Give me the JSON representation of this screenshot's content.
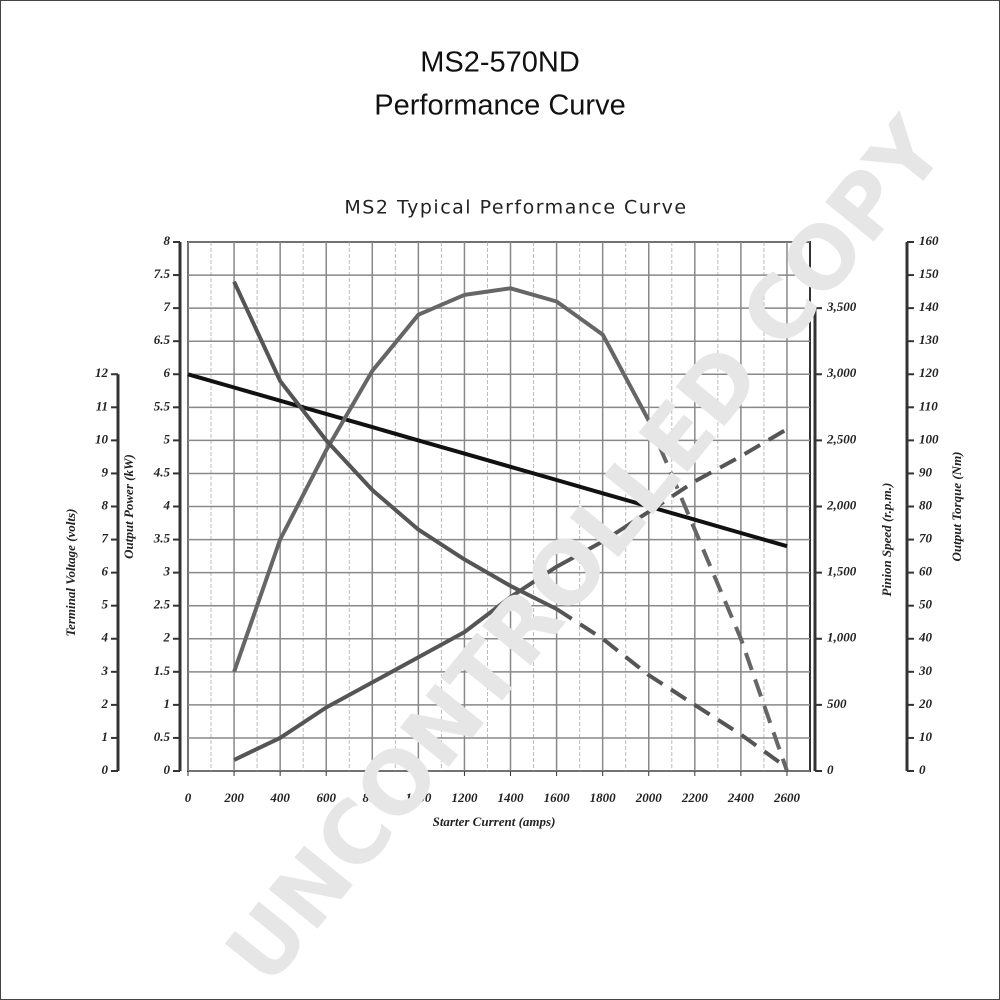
{
  "chart_data": {
    "type": "line",
    "title": "MS2-570ND",
    "subtitle": "Performance Curve",
    "chart_title": "MS2 Typical Performance Curve",
    "watermark": "UNCONTROLLED COPY",
    "x_label": "Starter Current  (amps)",
    "xlim": [
      0,
      2700
    ],
    "xticks": [
      0,
      200,
      400,
      600,
      800,
      1000,
      1200,
      1400,
      1600,
      1800,
      2000,
      2200,
      2400,
      2600
    ],
    "grid": true,
    "axes": [
      {
        "label": "Terminal Voltage (volts)",
        "lim": [
          0,
          16
        ],
        "ticks": [
          0,
          1,
          2,
          3,
          4,
          5,
          6,
          7,
          8,
          9,
          10,
          11,
          12
        ]
      },
      {
        "label": "Output Power (kW)",
        "lim": [
          0,
          8
        ],
        "ticks": [
          0,
          0.5,
          1,
          1.5,
          2,
          2.5,
          3,
          3.5,
          4,
          4.5,
          5,
          5.5,
          6,
          6.5,
          7,
          7.5,
          8
        ]
      },
      {
        "label": "Pinion Speed (r.p.m.)",
        "lim": [
          0,
          4000
        ],
        "ticks": [
          0,
          500,
          {
            "value": 1000,
            "label": "1,000"
          },
          {
            "value": 1500,
            "label": "1,500"
          },
          {
            "value": 2000,
            "label": "2,000"
          },
          {
            "value": 2500,
            "label": "2,500"
          },
          {
            "value": 3000,
            "label": "3,000"
          },
          {
            "value": 3500,
            "label": "3,500"
          }
        ]
      },
      {
        "label": "Output Torque (Nm)",
        "lim": [
          0,
          160
        ],
        "ticks": [
          0,
          10,
          20,
          30,
          40,
          50,
          60,
          70,
          80,
          90,
          100,
          110,
          120,
          130,
          140,
          150,
          160
        ]
      }
    ],
    "x": [
      0,
      200,
      400,
      600,
      800,
      1000,
      1200,
      1400,
      1600,
      1800,
      2000,
      2200,
      2400,
      2600
    ],
    "series": [
      {
        "axis": 0,
        "color": "#111111",
        "solid_until": null,
        "values": [
          12,
          11.6,
          11.2,
          10.8,
          10.4,
          10.0,
          9.6,
          9.2,
          8.8,
          8.4,
          8.0,
          7.6,
          7.2,
          6.8
        ]
      },
      {
        "axis": 1,
        "color": "#666666",
        "solid_until": 2000,
        "values": [
          null,
          1.5,
          3.5,
          4.85,
          6.05,
          6.9,
          7.2,
          7.3,
          7.1,
          6.6,
          5.3,
          3.65,
          2.0,
          0
        ]
      },
      {
        "axis": 3,
        "color": "#555555",
        "solid_until": 1600,
        "values": [
          null,
          148,
          118,
          100,
          85,
          73,
          64,
          56,
          49,
          40,
          29,
          20,
          11,
          1
        ]
      },
      {
        "axis": 2,
        "color": "#555555",
        "solid_until": 2000,
        "values": [
          null,
          84,
          250,
          480,
          670,
          860,
          1050,
          1315,
          1545,
          1735,
          1960,
          2190,
          2380,
          2585
        ]
      }
    ]
  }
}
